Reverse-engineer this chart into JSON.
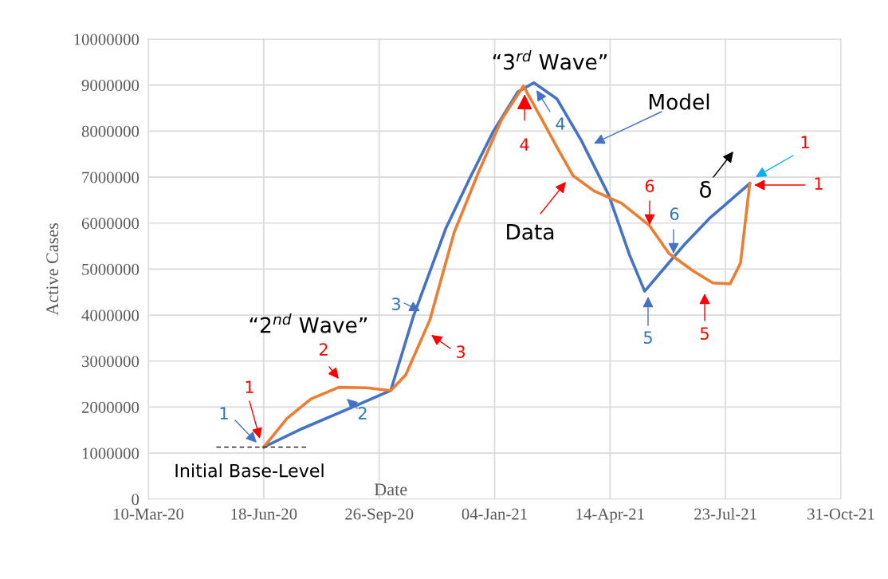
{
  "chart_data": {
    "type": "line",
    "xlabel": "Date",
    "ylabel": "Active Cases",
    "xlim": [
      "2020-03-10",
      "2021-10-31"
    ],
    "xticks": [
      {
        "value": "2020-03-10",
        "label": "10-Mar-20"
      },
      {
        "value": "2020-06-18",
        "label": "18-Jun-20"
      },
      {
        "value": "2020-09-26",
        "label": "26-Sep-20"
      },
      {
        "value": "2021-01-04",
        "label": "04-Jan-21"
      },
      {
        "value": "2021-04-14",
        "label": "14-Apr-21"
      },
      {
        "value": "2021-07-23",
        "label": "23-Jul-21"
      },
      {
        "value": "2021-10-31",
        "label": "31-Oct-21"
      }
    ],
    "ylim": [
      0,
      10000000
    ],
    "yticks": [
      0,
      1000000,
      2000000,
      3000000,
      4000000,
      5000000,
      6000000,
      7000000,
      8000000,
      9000000,
      10000000
    ],
    "grid": true,
    "marker": "none",
    "series": [
      {
        "color": "#4472c4",
        "x": [
          "2020-06-18",
          "2020-07-22",
          "2020-09-01",
          "2020-10-06",
          "2020-10-26",
          "2020-11-23",
          "2020-12-14",
          "2021-01-03",
          "2021-01-24",
          "2021-02-07",
          "2021-02-27",
          "2021-03-20",
          "2021-04-13",
          "2021-05-01",
          "2021-05-14",
          "2021-06-01",
          "2021-06-18",
          "2021-07-09",
          "2021-08-13"
        ],
        "values": [
          1130000,
          1540000,
          1980000,
          2360000,
          4000000,
          5900000,
          7000000,
          8000000,
          8850000,
          9050000,
          8700000,
          7800000,
          6600000,
          5300000,
          4520000,
          5050000,
          5550000,
          6100000,
          6860000
        ]
      },
      {
        "color": "#ed7d31",
        "x": [
          "2020-06-18",
          "2020-07-08",
          "2020-07-29",
          "2020-08-22",
          "2020-09-15",
          "2020-10-06",
          "2020-10-19",
          "2020-11-09",
          "2020-11-30",
          "2020-12-21",
          "2021-01-10",
          "2021-01-29",
          "2021-02-14",
          "2021-02-27",
          "2021-03-13",
          "2021-03-31",
          "2021-04-24",
          "2021-05-18",
          "2021-06-04",
          "2021-06-25",
          "2021-07-12",
          "2021-07-27",
          "2021-08-05",
          "2021-08-13"
        ],
        "values": [
          1130000,
          1750000,
          2180000,
          2430000,
          2420000,
          2360000,
          2700000,
          3900000,
          5800000,
          7100000,
          8250000,
          8980000,
          8250000,
          7650000,
          7030000,
          6700000,
          6430000,
          5950000,
          5340000,
          4960000,
          4700000,
          4680000,
          5130000,
          6860000
        ]
      },
      {
        "color": "#000000",
        "line_style": "dashed",
        "x": [
          "2020-05-08",
          "2020-07-25"
        ],
        "values": [
          1130000,
          1130000
        ]
      }
    ],
    "annotations": [
      "“2$^{nd}$ Wave”",
      "“3$^{rd}$ Wave”",
      "Model",
      "Data",
      "Initial Base-Level",
      "δ",
      "1",
      "1",
      "2",
      "2",
      "3",
      "3",
      {
        "text": "4",
        "x": "2021-01-30",
        "y": 8800000
      },
      "4",
      "6",
      "6",
      "5",
      "5",
      "1",
      "1"
    ]
  }
}
